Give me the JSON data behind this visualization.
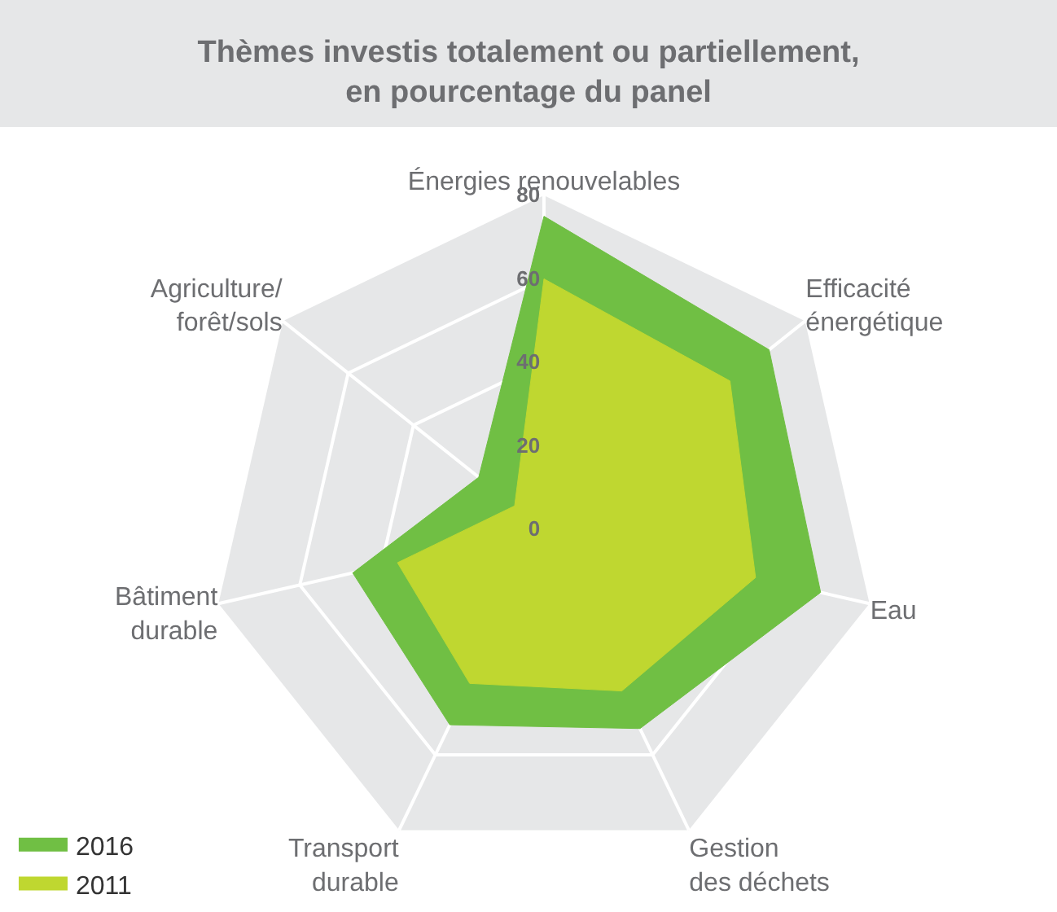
{
  "chart_data": {
    "type": "radar",
    "title": "Thèmes investis totalement ou partiellement,\nen pourcentage du panel",
    "categories": [
      "Énergies renouvelables",
      "Efficacité\nénergétique",
      "Eau",
      "Gestion\ndes déchets",
      "Transport\ndurable",
      "Bâtiment\ndurable",
      "Agriculture/\nforêt/sols"
    ],
    "series": [
      {
        "name": "2016",
        "color": "#70bf44",
        "values": [
          75,
          69,
          68,
          53,
          52,
          47,
          20
        ]
      },
      {
        "name": "2011",
        "color": "#bfd730",
        "values": [
          60,
          57,
          52,
          43,
          41,
          36,
          9
        ]
      }
    ],
    "ylim": [
      0,
      80
    ],
    "yticks": [
      0,
      20,
      40,
      60,
      80
    ],
    "grid": true,
    "legend": "bottom left",
    "marker": "none"
  }
}
